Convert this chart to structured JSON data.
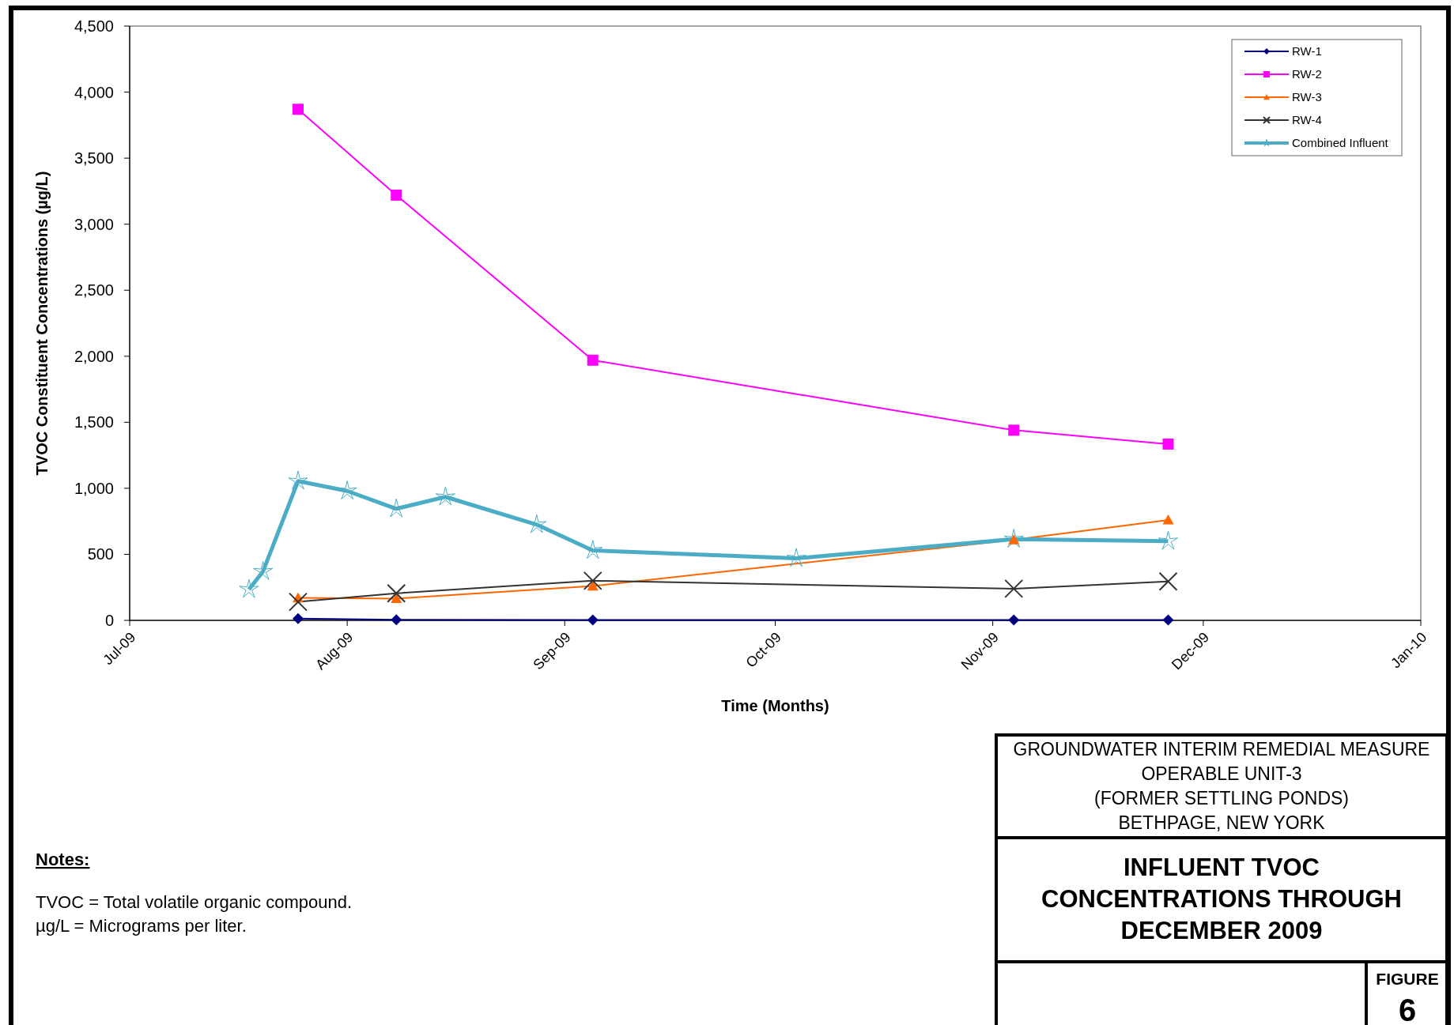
{
  "chart_data": {
    "type": "line",
    "title": "INFLUENT TVOC\nCONCENTRATIONS THROUGH\nDECEMBER 2009",
    "subtitle": "GROUNDWATER INTERIM REMEDIAL MEASURE\nOPERABLE UNIT-3\n(FORMER SETTLING PONDS)\nBETHPAGE, NEW YORK",
    "xlabel": "Time (Months)",
    "ylabel": "TVOC Constituent Concentrations (µg/L)",
    "annotations": [
      "Notes:",
      "TVOC = Total volatile organic compound.",
      "µg/L = Micrograms per liter.",
      "FIGURE",
      "6"
    ],
    "xlim": [
      "2009-07-01",
      "2010-01-01"
    ],
    "xticks": [
      {
        "value": "2009-07-01",
        "label": "Jul-09"
      },
      {
        "value": "2009-08-01",
        "label": "Aug-09"
      },
      {
        "value": "2009-09-01",
        "label": "Sep-09"
      },
      {
        "value": "2009-10-01",
        "label": "Oct-09"
      },
      {
        "value": "2009-11-01",
        "label": "Nov-09"
      },
      {
        "value": "2009-12-01",
        "label": "Dec-09"
      },
      {
        "value": "2010-01-01",
        "label": "Jan-10"
      }
    ],
    "ylim": [
      0,
      4500
    ],
    "yticks": [
      0,
      500,
      {
        "value": 1000,
        "label": "1,000"
      },
      {
        "value": 1500,
        "label": "1,500"
      },
      {
        "value": 2000,
        "label": "2,000"
      },
      {
        "value": 2500,
        "label": "2,500"
      },
      {
        "value": 3000,
        "label": "3,000"
      },
      {
        "value": 3500,
        "label": "3,500"
      },
      {
        "value": 4000,
        "label": "4,000"
      },
      {
        "value": 4500,
        "label": "4,500"
      }
    ],
    "legend": "top right",
    "grid": false,
    "series": [
      {
        "name": "RW-1",
        "color": "#000080",
        "marker": "diamond",
        "x": [
          "2009-07-25",
          "2009-08-08",
          "2009-09-05",
          "2009-11-04",
          "2009-11-26"
        ],
        "values": [
          14,
          5,
          3,
          3,
          3
        ]
      },
      {
        "name": "RW-2",
        "color": "#ff00ff",
        "marker": "square",
        "x": [
          "2009-07-25",
          "2009-08-08",
          "2009-09-05",
          "2009-11-04",
          "2009-11-26"
        ],
        "values": [
          3870,
          3220,
          1970,
          1440,
          1335
        ]
      },
      {
        "name": "RW-3",
        "color": "#ff6600",
        "marker": "triangle",
        "x": [
          "2009-07-25",
          "2009-08-08",
          "2009-09-05",
          "2009-11-04",
          "2009-11-26"
        ],
        "values": [
          170,
          165,
          260,
          610,
          760
        ]
      },
      {
        "name": "RW-4",
        "color": "#333333",
        "marker": "cross",
        "x": [
          "2009-07-25",
          "2009-08-08",
          "2009-09-05",
          "2009-11-04",
          "2009-11-26"
        ],
        "values": [
          140,
          205,
          300,
          240,
          295
        ]
      },
      {
        "name": "Combined Influent",
        "color": "#4bacc6",
        "marker": "star",
        "x": [
          "2009-07-18",
          "2009-07-20",
          "2009-07-25",
          "2009-08-01",
          "2009-08-08",
          "2009-08-15",
          "2009-08-28",
          "2009-09-05",
          "2009-10-04",
          "2009-11-04",
          "2009-11-26"
        ],
        "values": [
          235,
          370,
          1055,
          980,
          845,
          935,
          725,
          530,
          470,
          615,
          600
        ]
      }
    ]
  }
}
